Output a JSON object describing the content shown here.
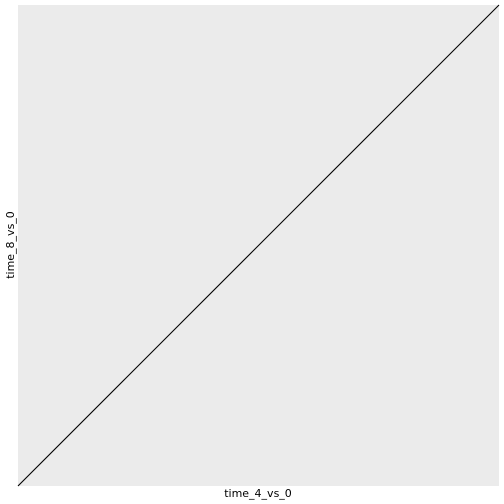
{
  "chart_data": {
    "type": "line",
    "title": "",
    "xlabel": "time_4_vs_0",
    "ylabel": "time_8_vs_0",
    "xlim": [
      0,
      1
    ],
    "ylim": [
      0,
      1
    ],
    "grid": false,
    "panel_background": "#EBEBEB",
    "line_color": "#000000",
    "series": [
      {
        "x": [
          0,
          1
        ],
        "y": [
          0,
          1
        ]
      }
    ]
  }
}
